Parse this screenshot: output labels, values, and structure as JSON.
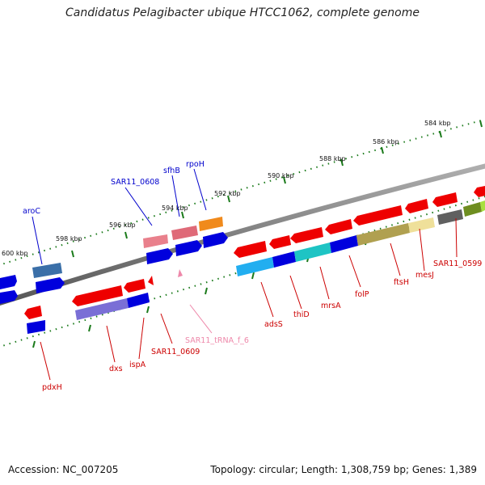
{
  "title": "Candidatus Pelagibacter ubique HTCC1062, complete genome",
  "footer": {
    "accession": "Accession: NC_007205",
    "summary": "Topology: circular; Length: 1,308,759 bp; Genes: 1,389"
  },
  "colors": {
    "backbone": "#808080",
    "ruler": "#1a7a1a",
    "forward_label": "#0000cc",
    "reverse_label": "#cc0000",
    "rna_label": "#ee88aa"
  },
  "ticks": [
    "584 kbp",
    "586 kbp",
    "588 kbp",
    "590 kbp",
    "592 kbp",
    "594 kbp",
    "596 kbp",
    "598 kbp",
    "600 kbp"
  ],
  "gene_labels": {
    "forward": [
      "aroC",
      "SAR11_0608",
      "sfhB",
      "rpoH"
    ],
    "reverse": [
      "pdxH",
      "dxs",
      "ispA",
      "SAR11_0609",
      "adsS",
      "thiD",
      "mrsA",
      "folP",
      "ftsH",
      "mesJ",
      "SAR11_0599"
    ],
    "rna": [
      "SAR11_tRNA_f_6"
    ]
  }
}
